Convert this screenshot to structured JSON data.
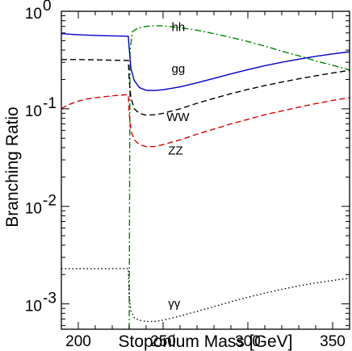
{
  "chart_data": {
    "type": "line",
    "title": "",
    "xlabel": "Stoponium Mass  [GeV]",
    "ylabel": "Branching  Ratio",
    "xlim": [
      190,
      360
    ],
    "ylim": [
      0.00055,
      1.0
    ],
    "yscale": "log",
    "grid": false,
    "legend": "none",
    "x_ticks": [
      200,
      250,
      300,
      350
    ],
    "x_tick_labels": [
      "200",
      "250",
      "300",
      "350"
    ],
    "y_ticks": [
      0.001,
      0.01,
      0.1,
      1
    ],
    "y_base": "10",
    "y_exponents": [
      "-3",
      "-2",
      "-1",
      "0"
    ],
    "series": [
      {
        "label": "hh",
        "color": "#008800",
        "dash": "dashdot",
        "label_pos": [
          255,
          0.63
        ],
        "x": [
          230,
          230.5,
          232,
          235,
          240,
          245,
          250,
          260,
          270,
          280,
          290,
          300,
          310,
          320,
          330,
          340,
          350,
          360
        ],
        "y": [
          0.00055,
          0.4,
          0.62,
          0.67,
          0.7,
          0.71,
          0.71,
          0.68,
          0.64,
          0.59,
          0.54,
          0.49,
          0.44,
          0.39,
          0.35,
          0.31,
          0.28,
          0.25
        ]
      },
      {
        "label": "gg",
        "color": "#0000cc",
        "dash": "solid",
        "label_pos": [
          255,
          0.235
        ],
        "x": [
          190,
          200,
          210,
          220,
          229.5,
          230,
          231,
          233,
          236,
          240,
          245,
          250,
          260,
          270,
          280,
          290,
          300,
          310,
          320,
          330,
          340,
          350,
          360
        ],
        "y": [
          0.59,
          0.575,
          0.565,
          0.56,
          0.555,
          0.42,
          0.26,
          0.195,
          0.165,
          0.155,
          0.154,
          0.157,
          0.168,
          0.185,
          0.205,
          0.228,
          0.252,
          0.277,
          0.3,
          0.323,
          0.345,
          0.366,
          0.385
        ]
      },
      {
        "label": "WW",
        "color": "#000000",
        "dash": "dashed",
        "label_pos": [
          252,
          0.075
        ],
        "x": [
          190,
          200,
          210,
          220,
          229.5,
          230,
          231,
          233,
          236,
          240,
          245,
          250,
          260,
          270,
          280,
          290,
          300,
          310,
          320,
          330,
          340,
          350,
          360
        ],
        "y": [
          0.32,
          0.32,
          0.318,
          0.315,
          0.313,
          0.2,
          0.13,
          0.1,
          0.09,
          0.086,
          0.087,
          0.09,
          0.1,
          0.114,
          0.128,
          0.143,
          0.158,
          0.173,
          0.188,
          0.203,
          0.218,
          0.233,
          0.248
        ]
      },
      {
        "label": "ZZ",
        "color": "#dd0000",
        "dash": "dashed",
        "label_pos": [
          253,
          0.034
        ],
        "x": [
          190,
          193,
          197,
          200,
          205,
          210,
          220,
          229.5,
          230,
          231,
          233,
          236,
          240,
          245,
          250,
          260,
          270,
          280,
          290,
          300,
          310,
          320,
          330,
          340,
          350,
          360
        ],
        "y": [
          0.1,
          0.108,
          0.115,
          0.12,
          0.126,
          0.13,
          0.136,
          0.14,
          0.09,
          0.06,
          0.048,
          0.043,
          0.041,
          0.041,
          0.043,
          0.048,
          0.055,
          0.062,
          0.07,
          0.078,
          0.087,
          0.095,
          0.104,
          0.113,
          0.122,
          0.13
        ]
      },
      {
        "label": "γγ",
        "color": "#000000",
        "dash": "dotted",
        "label_pos": [
          253,
          0.00092
        ],
        "x": [
          190,
          200,
          210,
          220,
          229.5,
          230,
          231,
          233,
          236,
          240,
          245,
          250,
          260,
          270,
          280,
          290,
          300,
          310,
          320,
          330,
          340,
          350,
          360
        ],
        "y": [
          0.0023,
          0.0023,
          0.0023,
          0.0023,
          0.0023,
          0.0012,
          0.00085,
          0.00072,
          0.00068,
          0.00066,
          0.00066,
          0.00068,
          0.00075,
          0.00084,
          0.00094,
          0.00105,
          0.00117,
          0.00129,
          0.00141,
          0.00153,
          0.00164,
          0.00174,
          0.00183
        ]
      }
    ]
  }
}
